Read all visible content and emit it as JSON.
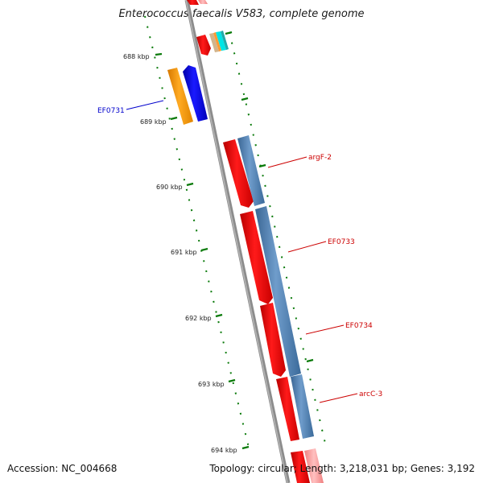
{
  "title": "Enterococcus faecalis V583, complete genome",
  "footer": {
    "accession": "Accession: NC_004668",
    "summary": "Topology: circular; Length: 3,218,031 bp; Genes: 3,192"
  },
  "ticks": [
    "688 kbp",
    "689 kbp",
    "690 kbp",
    "691 kbp",
    "692 kbp",
    "693 kbp",
    "694 kbp"
  ],
  "gene_labels": [
    {
      "name": "EF0731",
      "color": "#0000cc"
    },
    {
      "name": "argF-2",
      "color": "#cc0000"
    },
    {
      "name": "EF0733",
      "color": "#cc0000"
    },
    {
      "name": "EF0734",
      "color": "#cc0000"
    },
    {
      "name": "arcC-3",
      "color": "#cc0000"
    }
  ],
  "colors": {
    "forward_cds": "#ff0000",
    "reverse_cds": "#0000ff",
    "orange_feature": "#ff9900",
    "steelblue_feature": "#4f7fb5",
    "cyan_feature": "#00e5e5",
    "tan_feature": "#d2b48c",
    "backbone": "#8c8c8c",
    "tick": "#0a7a0a"
  }
}
